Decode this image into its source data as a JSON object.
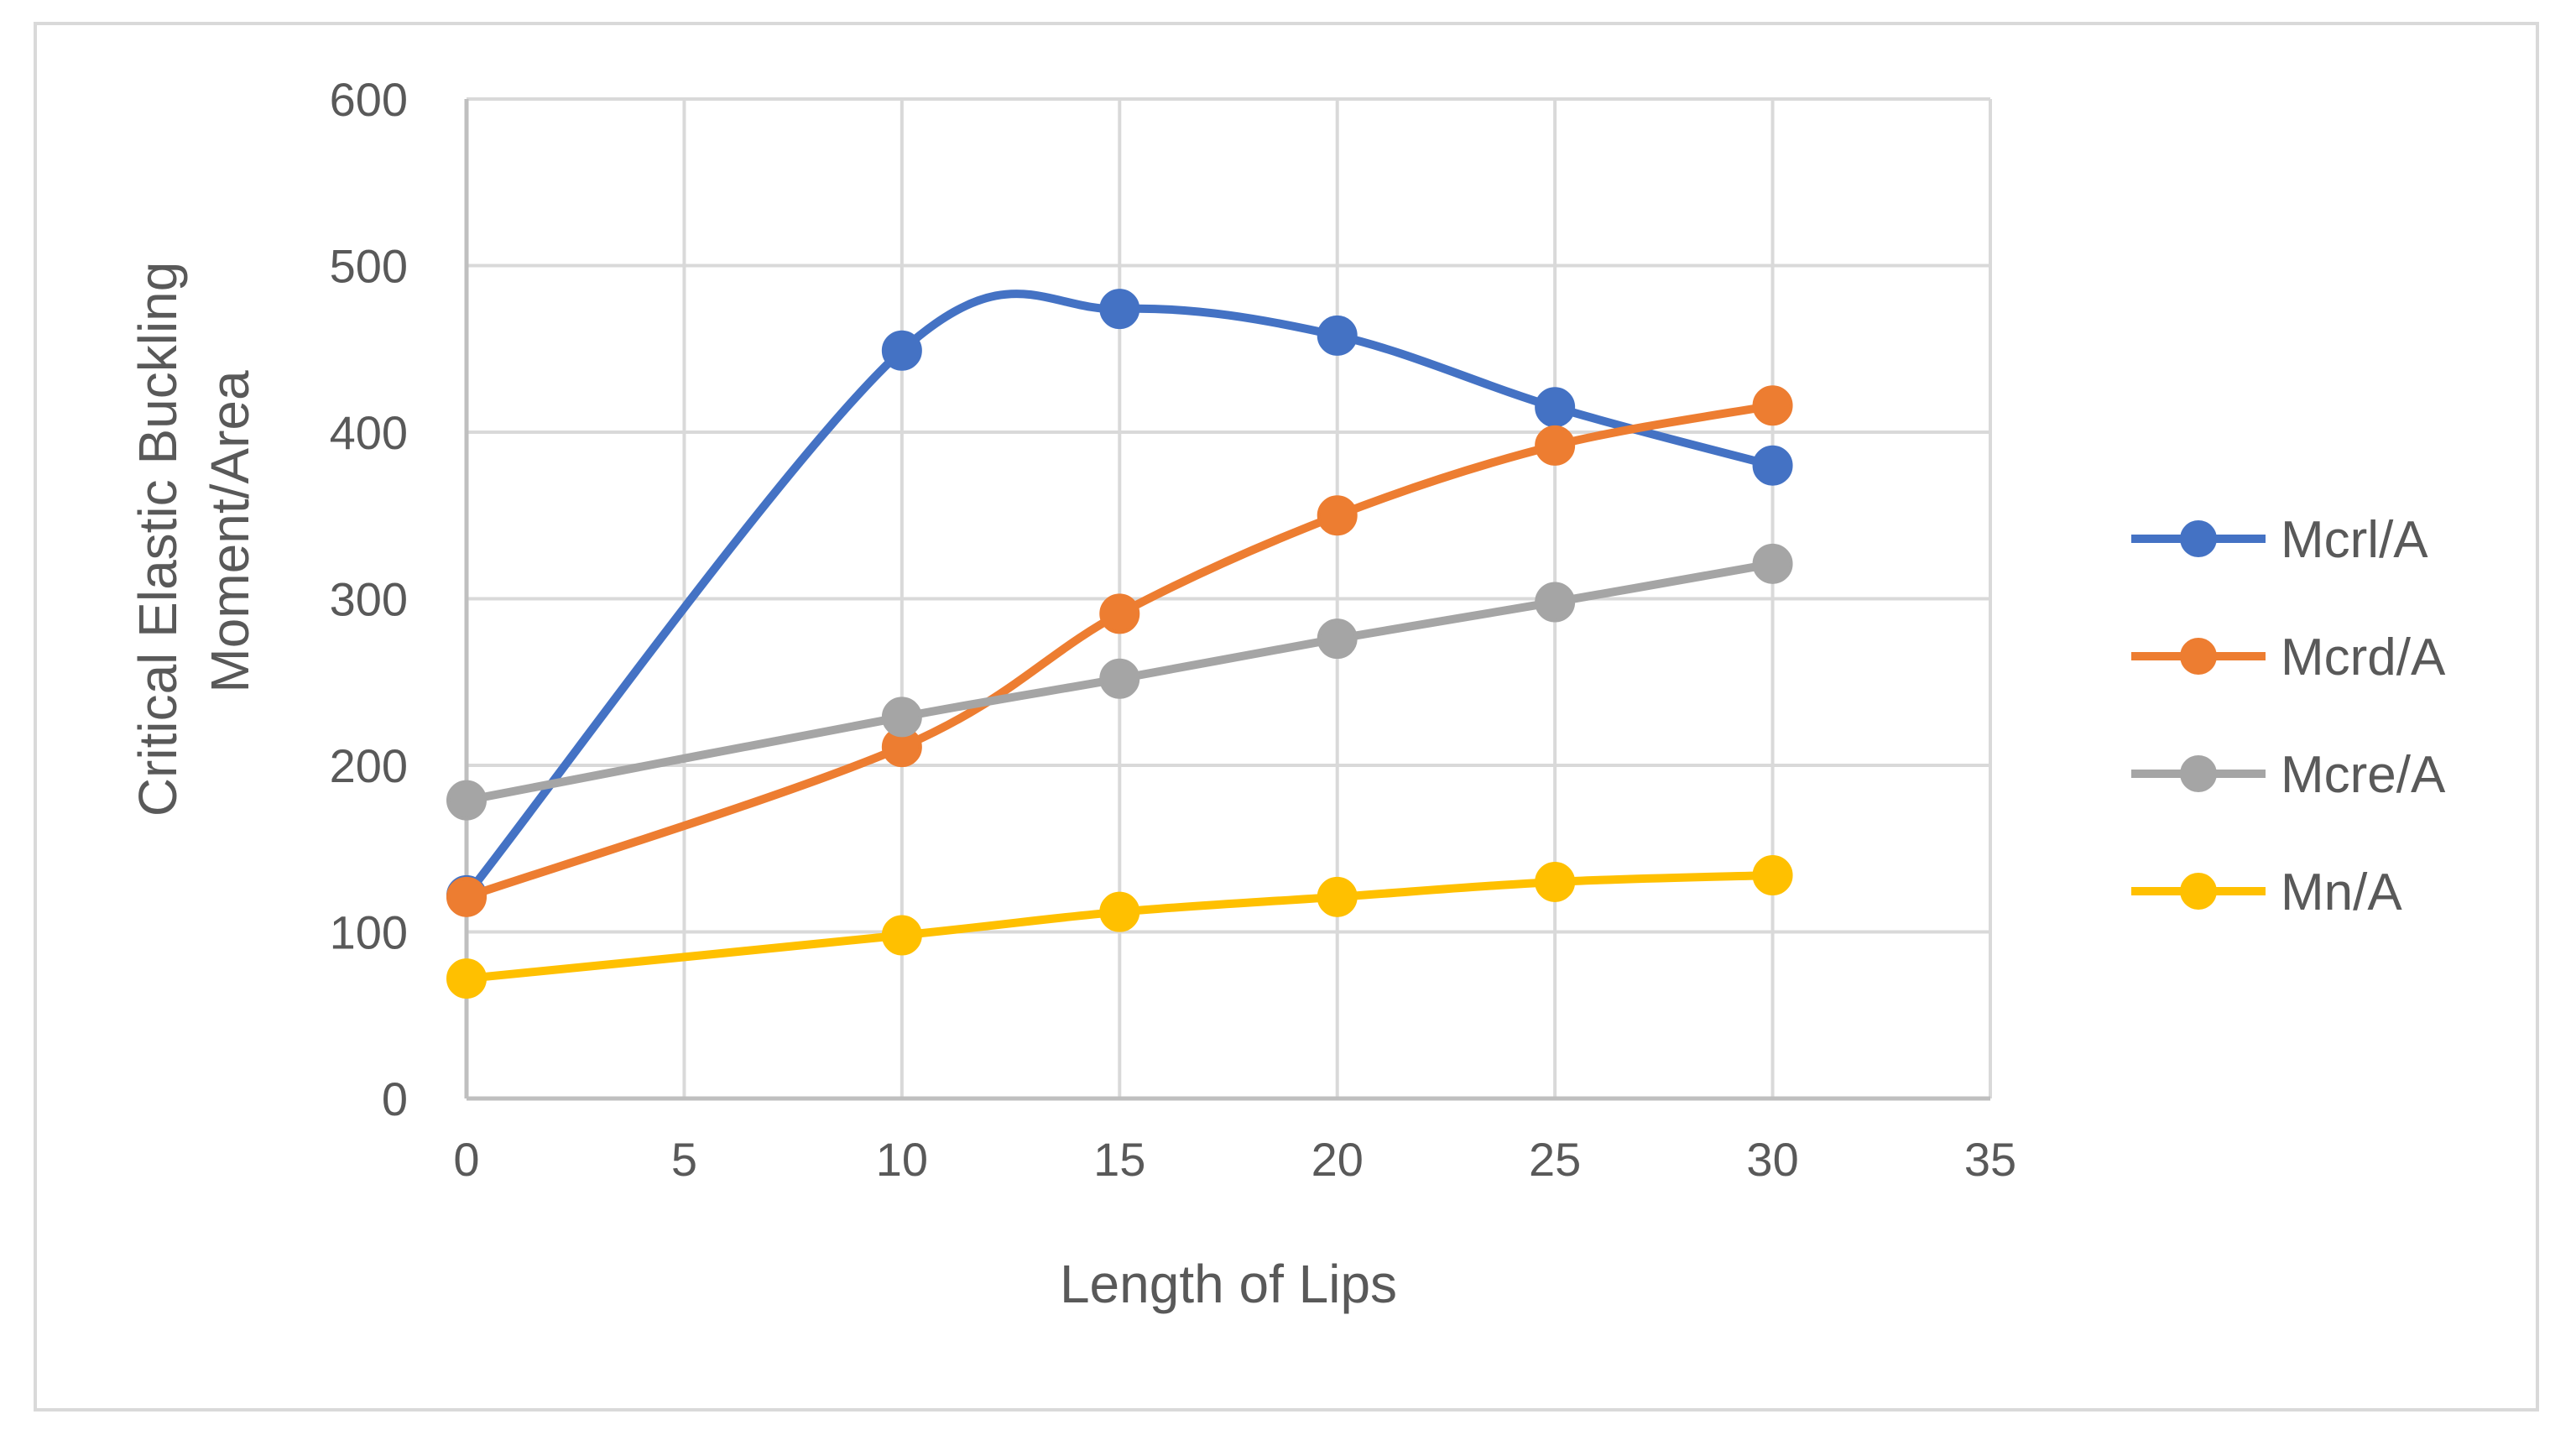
{
  "chart_data": {
    "type": "line",
    "title": "",
    "xlabel": "Length of Lips",
    "ylabel": [
      "Critical Elastic Buckling",
      "Moment/Area"
    ],
    "xlim": [
      0,
      35
    ],
    "ylim": [
      0,
      600
    ],
    "x_ticks": [
      0,
      5,
      10,
      15,
      20,
      25,
      30,
      35
    ],
    "y_ticks": [
      0,
      100,
      200,
      300,
      400,
      500,
      600
    ],
    "grid": true,
    "smoothed": true,
    "legend_position": "right",
    "x": [
      0,
      10,
      15,
      20,
      25,
      30
    ],
    "series": [
      {
        "name": "Mcrl/A",
        "color": "#4472c4",
        "values": [
          122,
          449,
          474,
          458,
          415,
          380
        ]
      },
      {
        "name": "Mcrd/A",
        "color": "#ed7d31",
        "values": [
          121,
          211,
          291,
          350,
          392,
          416
        ]
      },
      {
        "name": "Mcre/A",
        "color": "#a5a5a5",
        "values": [
          179,
          229,
          252,
          276,
          298,
          321
        ]
      },
      {
        "name": "Mn/A",
        "color": "#ffc000",
        "values": [
          72,
          98,
          112,
          121,
          130,
          134
        ]
      }
    ]
  }
}
